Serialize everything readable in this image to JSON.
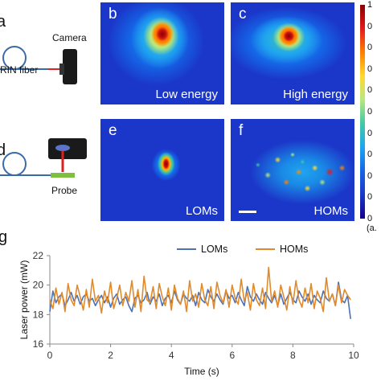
{
  "panels": {
    "a": {
      "letter": "a",
      "camera_label": "Camera",
      "fiber_label": "RIN fiber"
    },
    "b": {
      "letter": "b",
      "caption": "Low energy"
    },
    "c": {
      "letter": "c",
      "caption": "High energy"
    },
    "d": {
      "letter": "d",
      "probe_label": "Probe"
    },
    "e": {
      "letter": "e",
      "caption": "LOMs"
    },
    "f": {
      "letter": "f",
      "caption": "HOMs"
    },
    "g": {
      "letter": "g"
    }
  },
  "colorbar": {
    "ticks": [
      "1",
      "0",
      "0",
      "0",
      "0",
      "0",
      "0",
      "0",
      "0",
      "0",
      "0"
    ],
    "unit_label": "(a.",
    "colors": [
      "#8b0000",
      "#e31a1c",
      "#ff7f00",
      "#ffd92f",
      "#b6e880",
      "#41c9a6",
      "#1fa5f0",
      "#1565e6",
      "#1b37c9",
      "#14008a"
    ]
  },
  "colors": {
    "loms": "#4a72b5",
    "homs": "#e08a2b",
    "image_bg": "#1b37c9"
  },
  "chart_data": {
    "type": "line",
    "xlabel": "Time (s)",
    "ylabel": "Laser power (mW)",
    "xlim": [
      0,
      10
    ],
    "ylim": [
      16,
      22
    ],
    "xticks": [
      "0",
      "2",
      "4",
      "6",
      "8",
      "10"
    ],
    "yticks": [
      "16",
      "18",
      "20",
      "22"
    ],
    "legend_position": "top-right",
    "series": [
      {
        "name": "LOMs",
        "color": "#4a72b5",
        "x": [
          0.0,
          0.1,
          0.2,
          0.3,
          0.4,
          0.5,
          0.6,
          0.7,
          0.8,
          0.9,
          1.0,
          1.1,
          1.2,
          1.3,
          1.4,
          1.5,
          1.6,
          1.7,
          1.8,
          1.9,
          2.0,
          2.1,
          2.2,
          2.3,
          2.4,
          2.5,
          2.6,
          2.7,
          2.8,
          2.9,
          3.0,
          3.1,
          3.2,
          3.3,
          3.4,
          3.5,
          3.6,
          3.7,
          3.8,
          3.9,
          4.0,
          4.1,
          4.2,
          4.3,
          4.4,
          4.5,
          4.6,
          4.7,
          4.8,
          4.9,
          5.0,
          5.1,
          5.2,
          5.3,
          5.4,
          5.5,
          5.6,
          5.7,
          5.8,
          5.9,
          6.0,
          6.1,
          6.2,
          6.3,
          6.4,
          6.5,
          6.6,
          6.7,
          6.8,
          6.9,
          7.0,
          7.1,
          7.2,
          7.3,
          7.4,
          7.5,
          7.6,
          7.7,
          7.8,
          7.9,
          8.0,
          8.1,
          8.2,
          8.3,
          8.4,
          8.5,
          8.6,
          8.7,
          8.8,
          8.9,
          9.0,
          9.1,
          9.2,
          9.3,
          9.4,
          9.5,
          9.6,
          9.7,
          9.8,
          9.9
        ],
        "values": [
          18.2,
          19.6,
          18.8,
          19.2,
          19.4,
          18.6,
          19.0,
          19.5,
          18.9,
          19.3,
          18.7,
          19.2,
          19.4,
          18.9,
          19.1,
          18.6,
          19.0,
          19.3,
          18.8,
          19.2,
          18.5,
          19.1,
          19.4,
          18.7,
          19.0,
          19.2,
          18.6,
          18.2,
          19.1,
          19.3,
          18.8,
          19.0,
          19.5,
          18.7,
          19.2,
          18.9,
          19.4,
          18.6,
          19.1,
          19.3,
          18.8,
          19.6,
          19.0,
          18.7,
          19.4,
          19.1,
          18.9,
          19.3,
          18.6,
          19.5,
          19.0,
          18.8,
          19.7,
          19.2,
          18.9,
          19.4,
          19.0,
          18.7,
          19.6,
          19.1,
          19.3,
          18.8,
          19.5,
          19.0,
          18.6,
          19.9,
          19.2,
          18.9,
          19.4,
          19.0,
          18.7,
          19.5,
          19.1,
          18.8,
          19.3,
          18.6,
          19.4,
          18.7,
          19.1,
          19.5,
          19.0,
          18.8,
          19.6,
          19.2,
          18.9,
          19.4,
          18.7,
          19.3,
          19.0,
          18.8,
          19.6,
          19.1,
          18.9,
          19.4,
          18.6,
          20.2,
          19.0,
          18.8,
          19.3,
          17.7
        ]
      },
      {
        "name": "HOMs",
        "color": "#e08a2b",
        "x": [
          0.0,
          0.1,
          0.2,
          0.3,
          0.4,
          0.5,
          0.6,
          0.7,
          0.8,
          0.9,
          1.0,
          1.1,
          1.2,
          1.3,
          1.4,
          1.5,
          1.6,
          1.7,
          1.8,
          1.9,
          2.0,
          2.1,
          2.2,
          2.3,
          2.4,
          2.5,
          2.6,
          2.7,
          2.8,
          2.9,
          3.0,
          3.1,
          3.2,
          3.3,
          3.4,
          3.5,
          3.6,
          3.7,
          3.8,
          3.9,
          4.0,
          4.1,
          4.2,
          4.3,
          4.4,
          4.5,
          4.6,
          4.7,
          4.8,
          4.9,
          5.0,
          5.1,
          5.2,
          5.3,
          5.4,
          5.5,
          5.6,
          5.7,
          5.8,
          5.9,
          6.0,
          6.1,
          6.2,
          6.3,
          6.4,
          6.5,
          6.6,
          6.7,
          6.8,
          6.9,
          7.0,
          7.1,
          7.2,
          7.3,
          7.4,
          7.5,
          7.6,
          7.7,
          7.8,
          7.9,
          8.0,
          8.1,
          8.2,
          8.3,
          8.4,
          8.5,
          8.6,
          8.7,
          8.8,
          8.9,
          9.0,
          9.1,
          9.2,
          9.3,
          9.4,
          9.5,
          9.6,
          9.7,
          9.8,
          9.9
        ],
        "values": [
          19.0,
          18.4,
          19.8,
          18.7,
          19.5,
          18.2,
          20.1,
          19.0,
          18.6,
          20.0,
          19.2,
          18.3,
          19.7,
          18.5,
          20.4,
          18.9,
          19.3,
          18.1,
          19.6,
          18.8,
          20.2,
          18.4,
          19.1,
          20.0,
          18.6,
          19.5,
          18.9,
          20.3,
          18.5,
          19.7,
          18.2,
          20.6,
          19.0,
          18.8,
          19.9,
          18.4,
          20.1,
          19.2,
          18.6,
          19.8,
          18.3,
          20.0,
          19.1,
          18.7,
          19.6,
          18.2,
          20.3,
          18.9,
          19.4,
          18.5,
          20.1,
          19.0,
          18.6,
          19.9,
          18.4,
          20.2,
          19.3,
          18.8,
          19.7,
          18.5,
          20.0,
          19.1,
          18.7,
          20.4,
          18.9,
          19.5,
          18.3,
          20.1,
          19.0,
          18.6,
          19.8,
          18.4,
          21.2,
          18.9,
          19.6,
          18.5,
          20.0,
          19.2,
          18.3,
          19.9,
          18.7,
          20.3,
          19.0,
          18.5,
          19.8,
          18.8,
          20.1,
          18.4,
          19.6,
          19.1,
          18.2,
          20.5,
          18.9,
          19.4,
          18.6,
          20.0,
          18.8,
          19.7,
          19.3,
          19.0
        ]
      }
    ]
  }
}
